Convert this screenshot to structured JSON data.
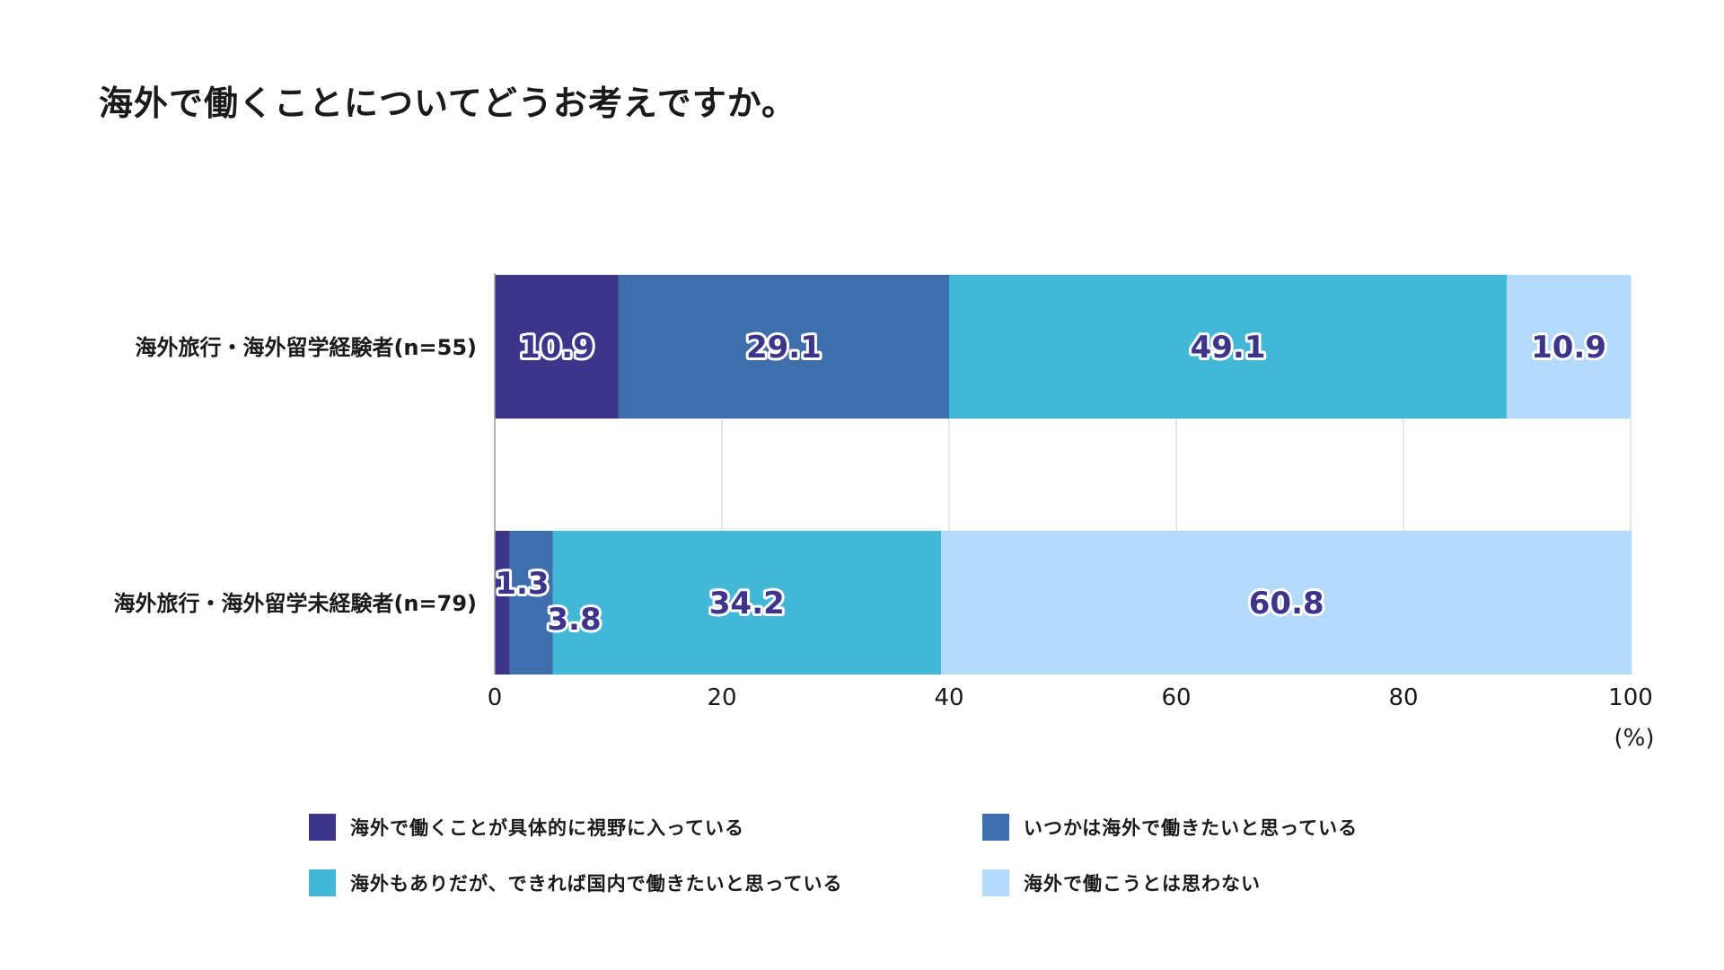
{
  "chart_data": {
    "type": "bar",
    "orientation": "horizontal",
    "stacked": true,
    "title": "海外で働くことについてどうお考えですか。",
    "categories": [
      "海外旅行・海外留学経験者(n=55)",
      "海外旅行・海外留学未経験者(n=79)"
    ],
    "series": [
      {
        "name": "海外で働くことが具体的に視野に入っている",
        "color": "#3d3589",
        "values": [
          10.9,
          1.3
        ]
      },
      {
        "name": "いつかは海外で働きたいと思っている",
        "color": "#3f6eac",
        "values": [
          29.1,
          3.8
        ]
      },
      {
        "name": "海外もありだが、できれば国内で働きたいと思っている",
        "color": "#43b7d6",
        "values": [
          49.1,
          34.2
        ]
      },
      {
        "name": "海外で働こうとは思わない",
        "color": "#b3d9fb",
        "values": [
          10.9,
          60.8
        ]
      }
    ],
    "data_labels": [
      [
        "10.9",
        "29.1",
        "49.1",
        "10.9"
      ],
      [
        "1.3",
        "3.8",
        "34.2",
        "60.8"
      ]
    ],
    "xlim": [
      0,
      100
    ],
    "xticks": [
      "0",
      "20",
      "40",
      "60",
      "80",
      "100"
    ],
    "xunit": "(%)",
    "grid": true,
    "legend": "bottom"
  }
}
